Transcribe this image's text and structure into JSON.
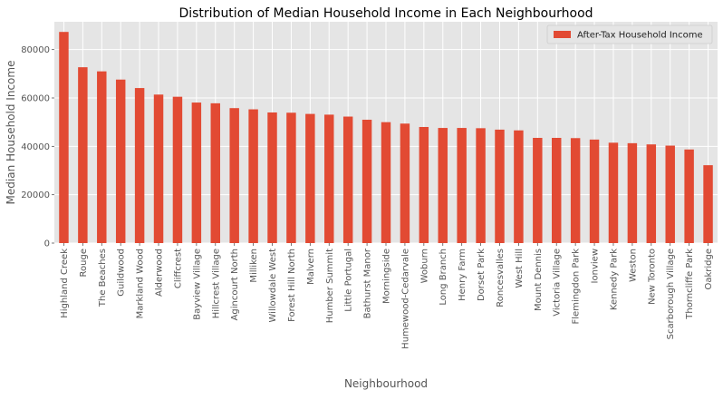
{
  "chart_data": {
    "type": "bar",
    "title": "Distribution of Median Household Income in Each Neighbourhood",
    "xlabel": "Neighbourhood",
    "ylabel": "Median Household Income",
    "ylim": [
      0,
      91500
    ],
    "yticks": [
      0,
      20000,
      40000,
      60000,
      80000
    ],
    "ytick_labels": [
      "0",
      "20000",
      "40000",
      "60000",
      "80000"
    ],
    "grid": true,
    "legend_position": "top-right",
    "categories": [
      "Highland Creek",
      "Rouge",
      "The Beaches",
      "Guildwood",
      "Markland Wood",
      "Alderwood",
      "Cliffcrest",
      "Bayview Village",
      "Hillcrest Village",
      "Agincourt North",
      "Milliken",
      "Willowdale West",
      "Forest Hill North",
      "Malvern",
      "Humber Summit",
      "Little Portugal",
      "Bathurst Manor",
      "Morningside",
      "Humewood-Cedarvale",
      "Woburn",
      "Long Branch",
      "Henry Farm",
      "Dorset Park",
      "Roncesvalles",
      "West Hill",
      "Mount Dennis",
      "Victoria Village",
      "Flemingdon Park",
      "Ionview",
      "Kennedy Park",
      "Weston",
      "New Toronto",
      "Scarborough Village",
      "Thorncliffe Park",
      "Oakridge"
    ],
    "series": [
      {
        "name": "After-Tax Household Income",
        "color": "#E24A33",
        "values": [
          87300,
          72700,
          71000,
          67600,
          64100,
          61400,
          60500,
          58100,
          57800,
          55800,
          55300,
          54000,
          53900,
          53400,
          53100,
          52300,
          51000,
          50000,
          49400,
          48000,
          47600,
          47600,
          47500,
          46900,
          46600,
          43500,
          43500,
          43400,
          42800,
          41500,
          41300,
          40800,
          40300,
          38700,
          32200
        ]
      }
    ]
  },
  "colors": {
    "plot_background": "#E5E5E5",
    "grid": "#FFFFFF",
    "bar": "#E24A33",
    "text": "#555555",
    "title": "#000000"
  }
}
